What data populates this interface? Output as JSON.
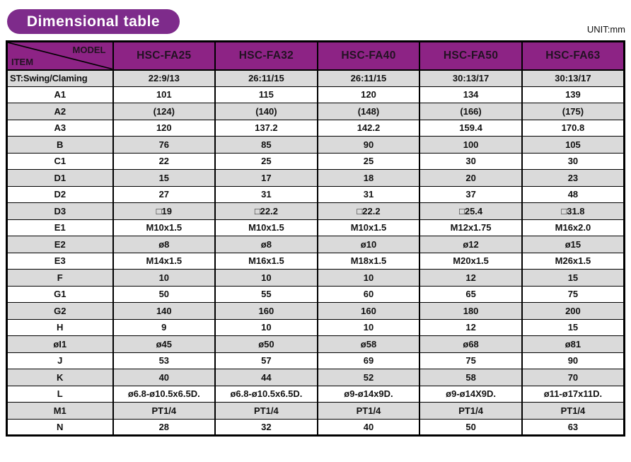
{
  "header": {
    "title": "Dimensional table",
    "unit": "UNIT:mm"
  },
  "colors": {
    "pill_purple": "#7e2b8b",
    "header_purple": "#8d2385",
    "row_gray": "#dadada",
    "row_white": "#ffffff",
    "border_black": "#000000",
    "header_text": "#221222"
  },
  "table": {
    "corner": {
      "model": "MODEL",
      "item": "ITEM"
    },
    "columns": [
      "HSC-FA25",
      "HSC-FA32",
      "HSC-FA40",
      "HSC-FA50",
      "HSC-FA63"
    ],
    "rows": [
      {
        "item": "ST:Swing/Claming",
        "values": [
          "22:9/13",
          "26:11/15",
          "26:11/15",
          "30:13/17",
          "30:13/17"
        ]
      },
      {
        "item": "A1",
        "values": [
          "101",
          "115",
          "120",
          "134",
          "139"
        ]
      },
      {
        "item": "A2",
        "values": [
          "(124)",
          "(140)",
          "(148)",
          "(166)",
          "(175)"
        ]
      },
      {
        "item": "A3",
        "values": [
          "120",
          "137.2",
          "142.2",
          "159.4",
          "170.8"
        ]
      },
      {
        "item": "B",
        "values": [
          "76",
          "85",
          "90",
          "100",
          "105"
        ]
      },
      {
        "item": "C1",
        "values": [
          "22",
          "25",
          "25",
          "30",
          "30"
        ]
      },
      {
        "item": "D1",
        "values": [
          "15",
          "17",
          "18",
          "20",
          "23"
        ]
      },
      {
        "item": "D2",
        "values": [
          "27",
          "31",
          "31",
          "37",
          "48"
        ]
      },
      {
        "item": "D3",
        "values": [
          "□19",
          "□22.2",
          "□22.2",
          "□25.4",
          "□31.8"
        ]
      },
      {
        "item": "E1",
        "values": [
          "M10x1.5",
          "M10x1.5",
          "M10x1.5",
          "M12x1.75",
          "M16x2.0"
        ]
      },
      {
        "item": "E2",
        "values": [
          "ø8",
          "ø8",
          "ø10",
          "ø12",
          "ø15"
        ]
      },
      {
        "item": "E3",
        "values": [
          "M14x1.5",
          "M16x1.5",
          "M18x1.5",
          "M20x1.5",
          "M26x1.5"
        ]
      },
      {
        "item": "F",
        "values": [
          "10",
          "10",
          "10",
          "12",
          "15"
        ]
      },
      {
        "item": "G1",
        "values": [
          "50",
          "55",
          "60",
          "65",
          "75"
        ]
      },
      {
        "item": "G2",
        "values": [
          "140",
          "160",
          "160",
          "180",
          "200"
        ]
      },
      {
        "item": "H",
        "values": [
          "9",
          "10",
          "10",
          "12",
          "15"
        ]
      },
      {
        "item": "øI1",
        "values": [
          "ø45",
          "ø50",
          "ø58",
          "ø68",
          "ø81"
        ]
      },
      {
        "item": "J",
        "values": [
          "53",
          "57",
          "69",
          "75",
          "90"
        ]
      },
      {
        "item": "K",
        "values": [
          "40",
          "44",
          "52",
          "58",
          "70"
        ]
      },
      {
        "item": "L",
        "values": [
          "ø6.8-ø10.5x6.5D.",
          "ø6.8-ø10.5x6.5D.",
          "ø9-ø14x9D.",
          "ø9-ø14X9D.",
          "ø11-ø17x11D."
        ]
      },
      {
        "item": "M1",
        "values": [
          "PT1/4",
          "PT1/4",
          "PT1/4",
          "PT1/4",
          "PT1/4"
        ]
      },
      {
        "item": "N",
        "values": [
          "28",
          "32",
          "40",
          "50",
          "63"
        ]
      }
    ]
  }
}
